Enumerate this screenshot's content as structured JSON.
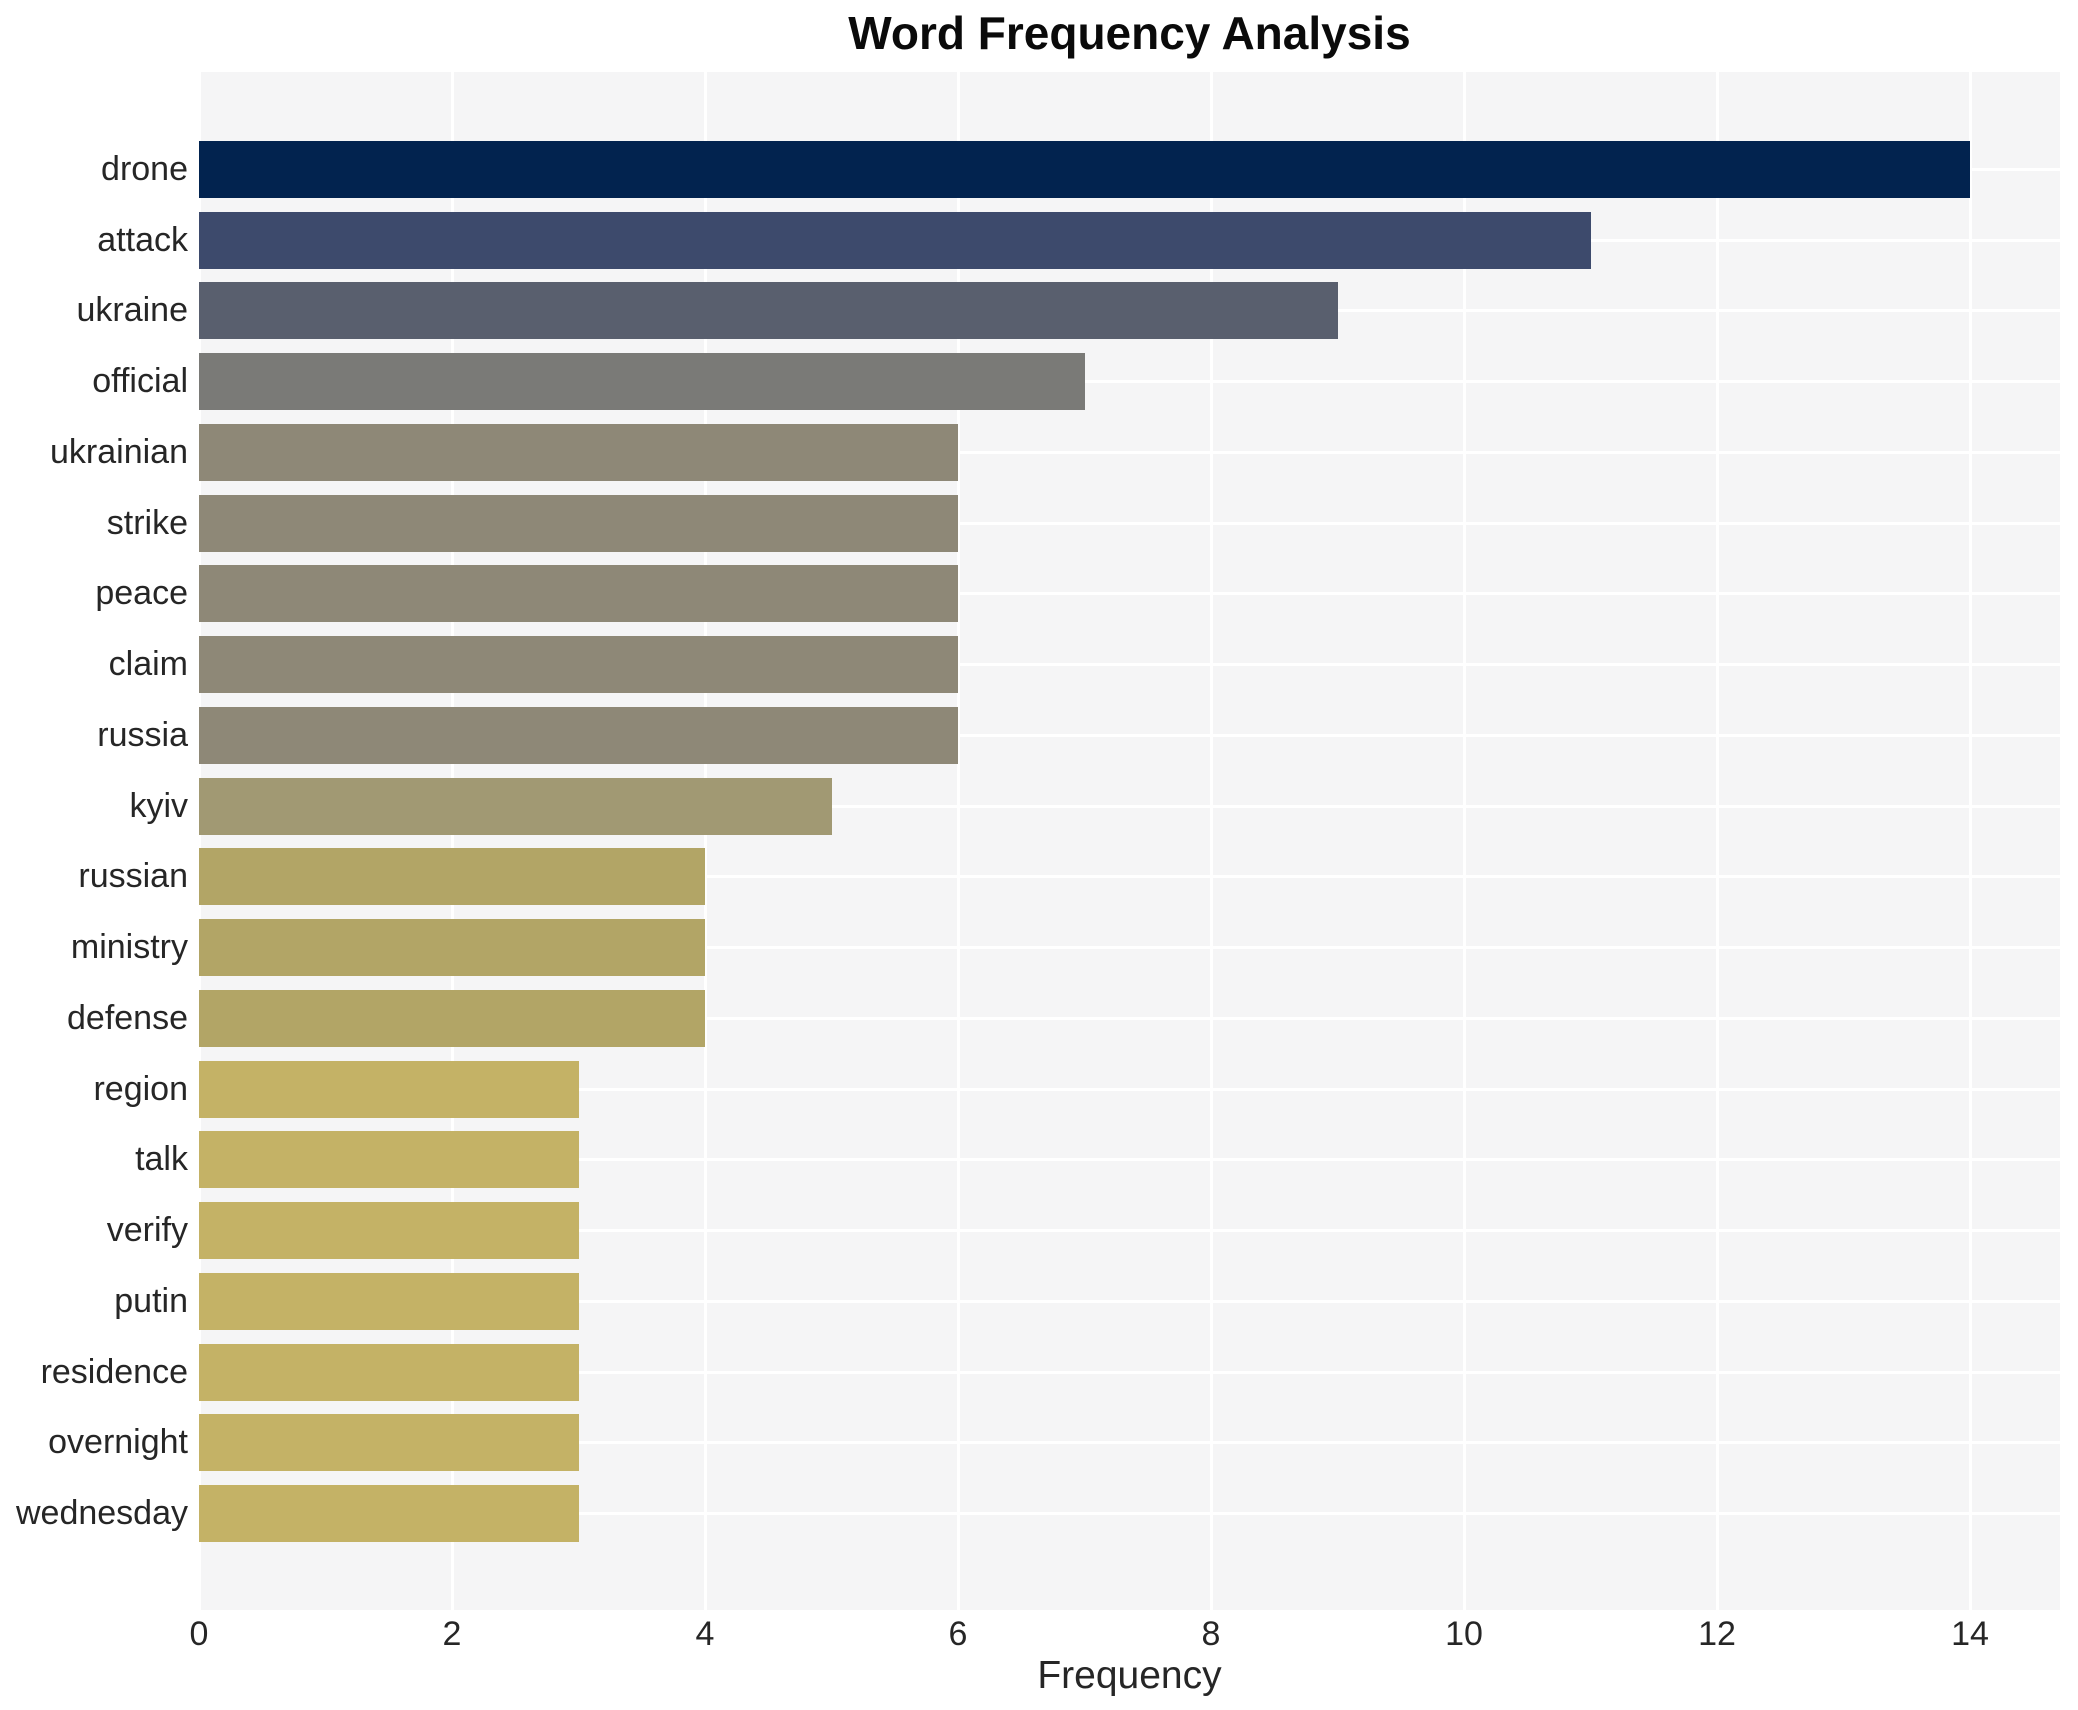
{
  "chart_data": {
    "type": "bar",
    "orientation": "horizontal",
    "title": "Word Frequency Analysis",
    "xlabel": "Frequency",
    "ylabel": "",
    "categories": [
      "drone",
      "attack",
      "ukraine",
      "official",
      "ukrainian",
      "strike",
      "peace",
      "claim",
      "russia",
      "kyiv",
      "russian",
      "ministry",
      "defense",
      "region",
      "talk",
      "verify",
      "putin",
      "residence",
      "overnight",
      "wednesday"
    ],
    "values": [
      14,
      11,
      9,
      7,
      6,
      6,
      6,
      6,
      6,
      5,
      4,
      4,
      4,
      3,
      3,
      3,
      3,
      3,
      3,
      3
    ],
    "bar_colors": [
      "#02234f",
      "#3d4a6c",
      "#595f6e",
      "#7a7a77",
      "#8e8877",
      "#8e8877",
      "#8e8877",
      "#8e8877",
      "#8e8877",
      "#a19973",
      "#b2a566",
      "#b2a566",
      "#b2a566",
      "#c4b266",
      "#c4b266",
      "#c4b266",
      "#c4b266",
      "#c4b266",
      "#c4b266",
      "#c4b266"
    ],
    "xlim": [
      0,
      14.7
    ],
    "xticks": [
      0,
      2,
      4,
      6,
      8,
      10,
      12,
      14
    ],
    "grid": true,
    "legend": "none",
    "colors": {
      "plot_background": "#f5f5f6",
      "figure_background": "#ffffff",
      "gridline": "#ffffff",
      "text": "#262626",
      "title_text": "#0a0a0a"
    }
  }
}
